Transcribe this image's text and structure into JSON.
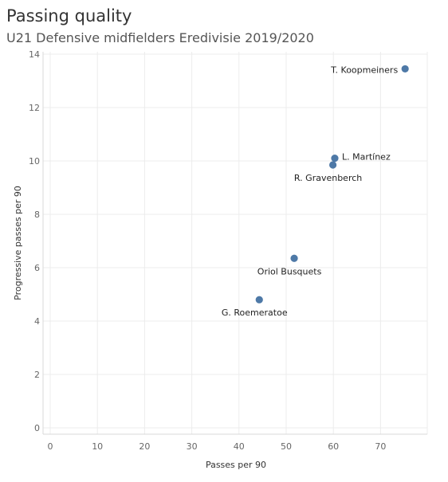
{
  "header": {
    "title": "Passing quality",
    "subtitle": "U21 Defensive midfielders Eredivisie 2019/2020"
  },
  "colors": {
    "point": "#4e79a7",
    "grid": "#ececec",
    "axis": "#d8d8d8"
  },
  "chart_data": {
    "type": "scatter",
    "title": "Passing quality",
    "subtitle": "U21 Defensive midfielders Eredivisie 2019/2020",
    "xlabel": "Passes per 90",
    "ylabel": "Progressive passes per 90",
    "xlim": [
      0,
      80
    ],
    "ylim": [
      0,
      14
    ],
    "xticks": [
      0,
      10,
      20,
      30,
      40,
      50,
      60,
      70
    ],
    "yticks": [
      0,
      2,
      4,
      6,
      8,
      10,
      12,
      14
    ],
    "grid": true,
    "points": [
      {
        "label": "T. Koopmeiners",
        "x": 75.2,
        "y": 13.45,
        "label_position": "left"
      },
      {
        "label": "L. Martínez",
        "x": 60.3,
        "y": 10.1,
        "label_position": "right"
      },
      {
        "label": "R. Gravenberch",
        "x": 59.9,
        "y": 9.85,
        "label_position": "below"
      },
      {
        "label": "Oriol Busquets",
        "x": 51.7,
        "y": 6.35,
        "label_position": "below"
      },
      {
        "label": "G. Roemeratoe",
        "x": 44.3,
        "y": 4.8,
        "label_position": "below"
      }
    ]
  }
}
